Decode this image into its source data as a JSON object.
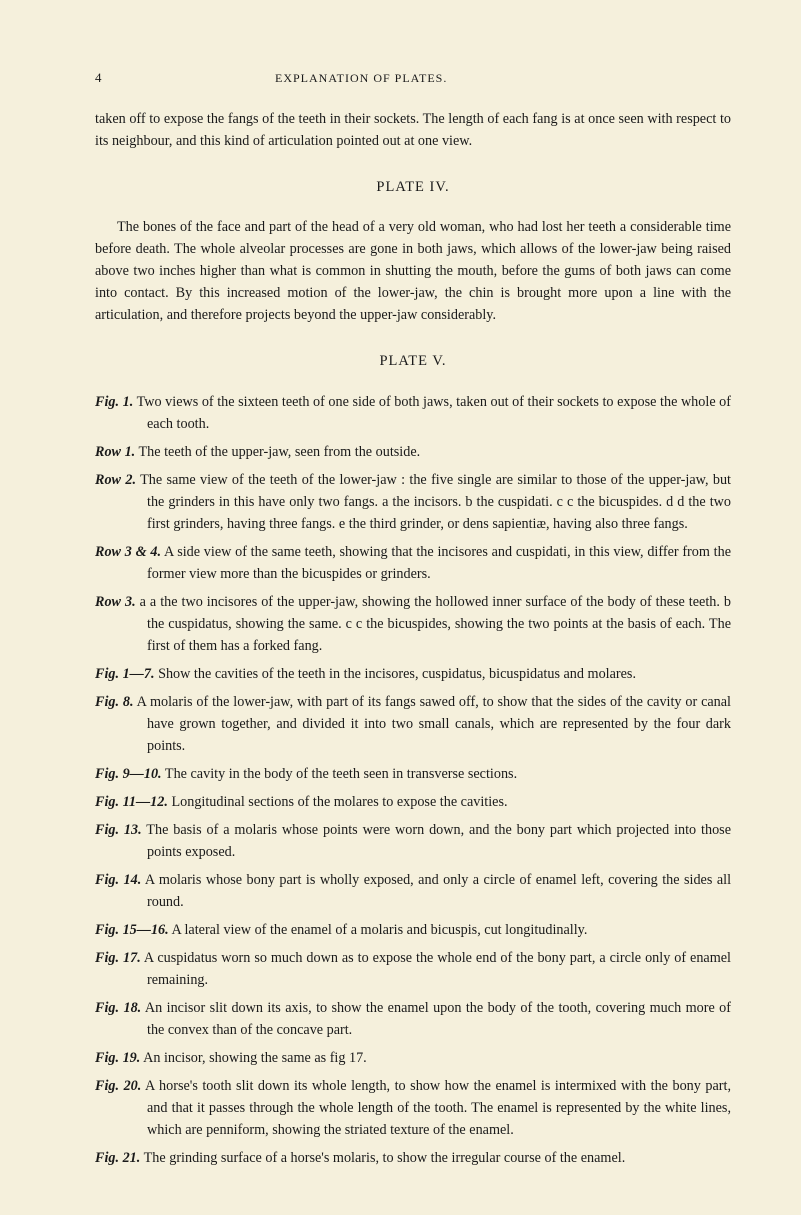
{
  "page_number": "4",
  "running_title": "EXPLANATION OF PLATES.",
  "continuation": "taken off to expose the fangs of the teeth in their sockets. The length of each fang is at once seen with respect to its neighbour, and this kind of articulation pointed out at one view.",
  "plate4": {
    "heading": "PLATE IV.",
    "body": "The bones of the face and part of the head of a very old woman, who had lost her teeth a considerable time before death. The whole alveolar processes are gone in both jaws, which allows of the lower-jaw being raised above two inches higher than what is common in shutting the mouth, before the gums of both jaws can come into contact. By this increased motion of the lower-jaw, the chin is brought more upon a line with the articulation, and therefore projects beyond the upper-jaw considerably."
  },
  "plate5": {
    "heading": "PLATE V.",
    "entries": [
      {
        "label": "Fig. 1.",
        "text": "Two views of the sixteen teeth of one side of both jaws, taken out of their sockets to expose the whole of each tooth."
      },
      {
        "label": "Row 1.",
        "text": "The teeth of the upper-jaw, seen from the outside."
      },
      {
        "label": "Row 2.",
        "text": "The same view of the teeth of the lower-jaw : the five single are similar to those of the upper-jaw, but the grinders in this have only two fangs. a the incisors. b the cuspidati. c c the bicuspides. d d the two first grinders, having three fangs. e the third grinder, or dens sapientiæ, having also three fangs."
      },
      {
        "label": "Row 3 & 4.",
        "text": "A side view of the same teeth, showing that the incisores and cuspidati, in this view, differ from the former view more than the bicuspides or grinders."
      },
      {
        "label": "Row 3.",
        "text": "a a the two incisores of the upper-jaw, showing the hollowed inner surface of the body of these teeth. b the cuspidatus, showing the same. c c the bicuspides, showing the two points at the basis of each. The first of them has a forked fang."
      },
      {
        "label": "Fig. 1—7.",
        "text": "Show the cavities of the teeth in the incisores, cuspidatus, bicuspidatus and molares."
      },
      {
        "label": "Fig. 8.",
        "text": "A molaris of the lower-jaw, with part of its fangs sawed off, to show that the sides of the cavity or canal have grown together, and divided it into two small canals, which are represented by the four dark points."
      },
      {
        "label": "Fig. 9—10.",
        "text": "The cavity in the body of the teeth seen in transverse sections."
      },
      {
        "label": "Fig. 11—12.",
        "text": "Longitudinal sections of the molares to expose the cavities."
      },
      {
        "label": "Fig. 13.",
        "text": "The basis of a molaris whose points were worn down, and the bony part which projected into those points exposed."
      },
      {
        "label": "Fig. 14.",
        "text": "A molaris whose bony part is wholly exposed, and only a circle of enamel left, covering the sides all round."
      },
      {
        "label": "Fig. 15—16.",
        "text": "A lateral view of the enamel of a molaris and bicuspis, cut longitudinally."
      },
      {
        "label": "Fig. 17.",
        "text": "A cuspidatus worn so much down as to expose the whole end of the bony part, a circle only of enamel remaining."
      },
      {
        "label": "Fig. 18.",
        "text": "An incisor slit down its axis, to show the enamel upon the body of the tooth, covering much more of the convex than of the concave part."
      },
      {
        "label": "Fig. 19.",
        "text": "An incisor, showing the same as fig 17."
      },
      {
        "label": "Fig. 20.",
        "text": "A horse's tooth slit down its whole length, to show how the enamel is intermixed with the bony part, and that it passes through the whole length of the tooth. The enamel is represented by the white lines, which are penniform, showing the striated texture of the enamel."
      },
      {
        "label": "Fig. 21.",
        "text": "The grinding surface of a horse's molaris, to show the irregular course of the enamel."
      }
    ]
  }
}
